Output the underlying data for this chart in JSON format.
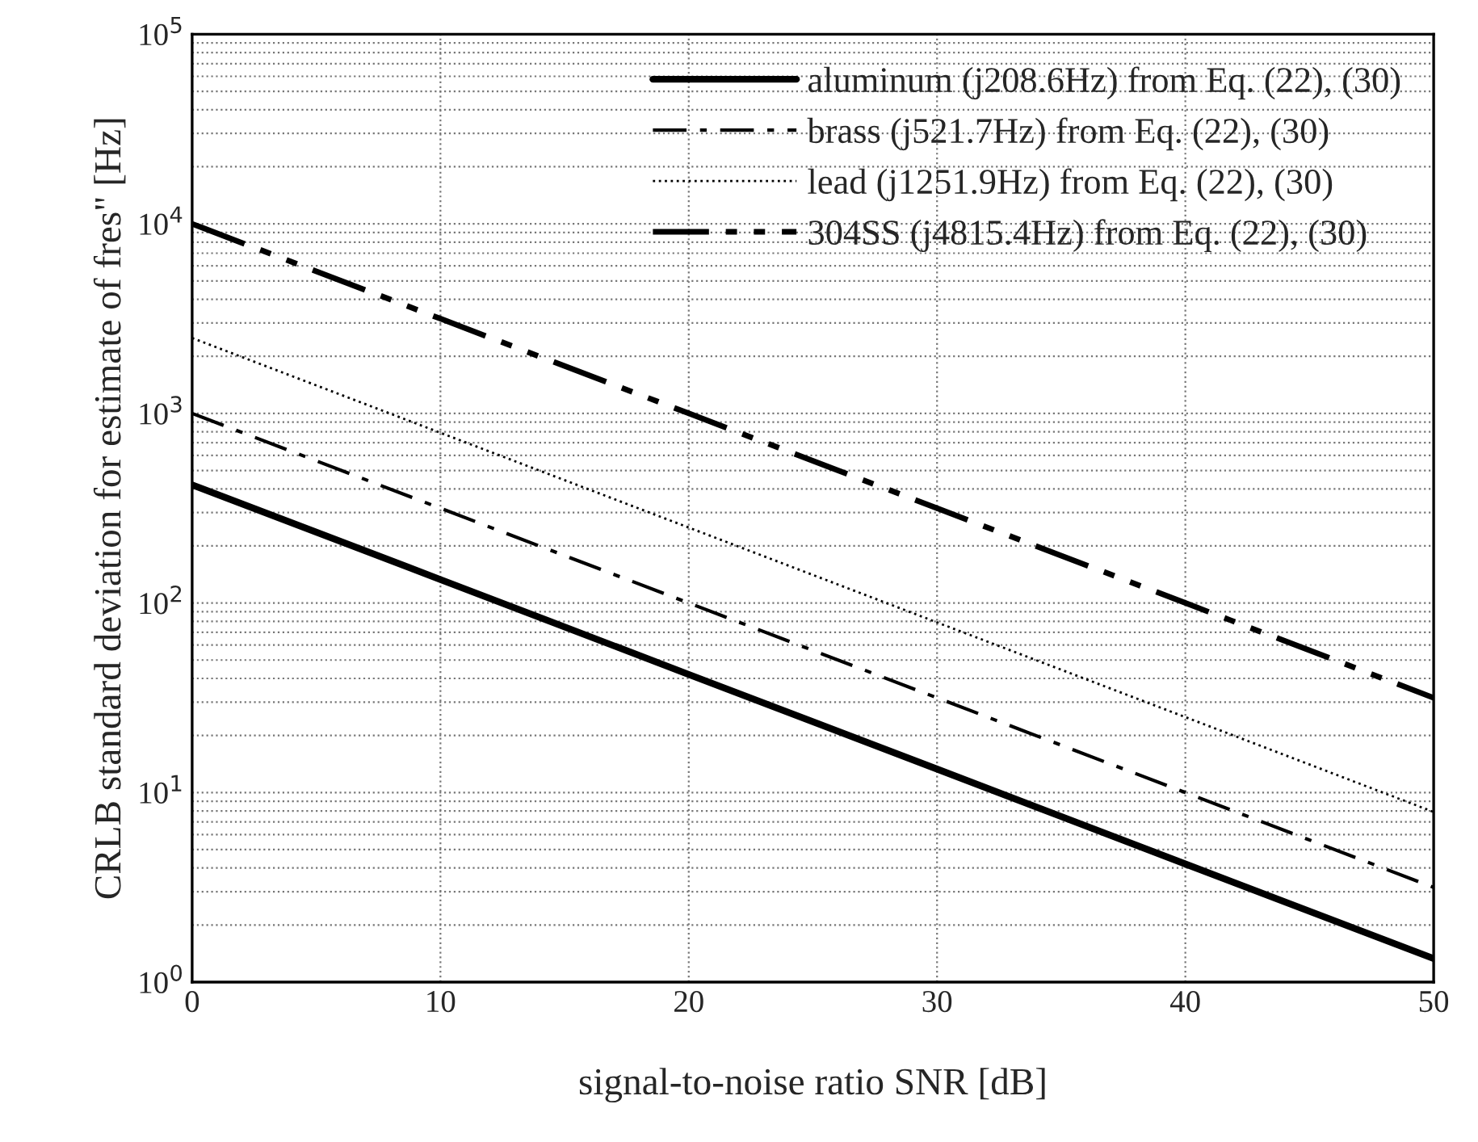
{
  "chart_data": {
    "type": "line",
    "xlabel": "signal-to-noise ratio SNR [dB]",
    "ylabel": "CRLB standard deviation for estimate of fres\" [Hz]",
    "x": [
      0,
      10,
      20,
      30,
      40,
      50
    ],
    "series": [
      {
        "name": "aluminum (j208.6Hz) from Eq. (22), (30)",
        "color": "#000000",
        "line_style": "solid",
        "values": [
          420,
          133,
          42,
          13.3,
          4.2,
          1.33
        ]
      },
      {
        "name": "brass (j521.7Hz) from Eq. (22), (30)",
        "color": "#000000",
        "line_style": "dashdot",
        "values": [
          1000,
          316,
          100,
          31.6,
          10,
          3.16
        ]
      },
      {
        "name": "lead (j1251.9Hz) from Eq. (22), (30)",
        "color": "#000000",
        "line_style": "dotted",
        "values": [
          2500,
          790,
          250,
          79,
          25,
          7.9
        ]
      },
      {
        "name": "304SS (j4815.4Hz) from Eq. (22), (30)",
        "color": "#000000",
        "line_style": "dashdotdot",
        "values": [
          10000,
          3160,
          1000,
          316,
          100,
          31.6
        ]
      }
    ],
    "log": "y",
    "xlim": [
      0,
      50
    ],
    "ylim": [
      1,
      100000
    ],
    "xticks": [
      0,
      10,
      20,
      30,
      40,
      50
    ],
    "yticks": [
      {
        "value": 1,
        "label": "10$^{0}$"
      },
      {
        "value": 10,
        "label": "10$^{1}$"
      },
      {
        "value": 100,
        "label": "10$^{2}$"
      },
      {
        "value": 1000,
        "label": "10$^{3}$"
      },
      {
        "value": 10000,
        "label": "10$^{4}$"
      },
      {
        "value": 100000,
        "label": "10$^{5}$"
      }
    ],
    "grid": true,
    "legend": "top right"
  }
}
